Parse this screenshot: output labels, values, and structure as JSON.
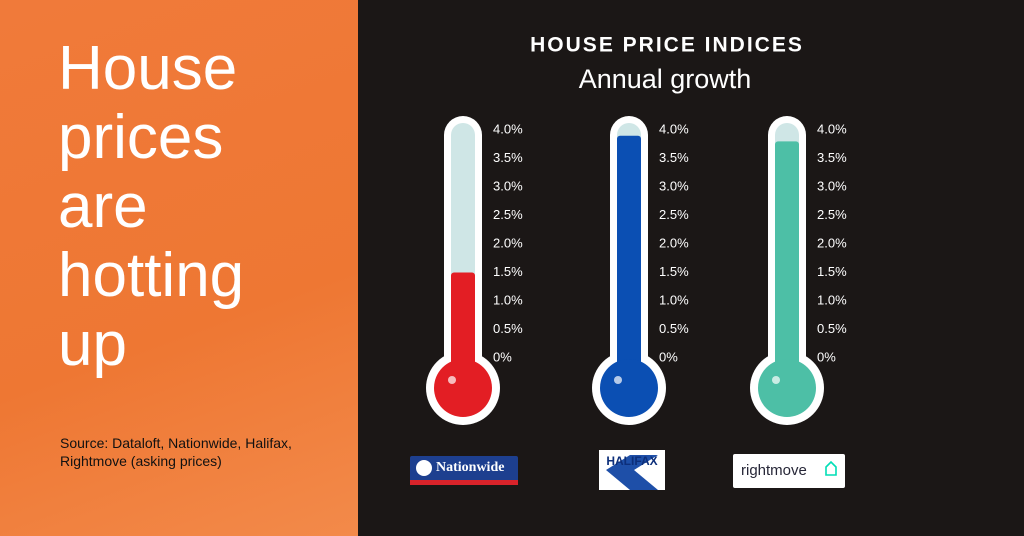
{
  "panel": {
    "headline": "House prices are hotting up",
    "source": "Source: Dataloft, Nationwide, Halifax, Rightmove (asking prices)"
  },
  "chart_data": {
    "type": "thermometer",
    "title": "HOUSE PRICE INDICES",
    "subtitle": "Annual growth",
    "categories": [
      "Nationwide",
      "HALIFAX",
      "rightmove"
    ],
    "values": [
      1.5,
      3.9,
      3.8
    ],
    "colors": [
      "#e31e24",
      "#0b4fb3",
      "#4dbfa6"
    ],
    "ylim": [
      0,
      4
    ],
    "yticks": [
      {
        "value": 0,
        "label": "0%"
      },
      {
        "value": 0.5,
        "label": "0.5%"
      },
      {
        "value": 1,
        "label": "1.0%"
      },
      {
        "value": 1.5,
        "label": "1.5%"
      },
      {
        "value": 2,
        "label": "2.0%"
      },
      {
        "value": 2.5,
        "label": "2.5%"
      },
      {
        "value": 3,
        "label": "3.0%"
      },
      {
        "value": 3.5,
        "label": "3.5%"
      },
      {
        "value": 4,
        "label": "4.0%"
      }
    ]
  }
}
